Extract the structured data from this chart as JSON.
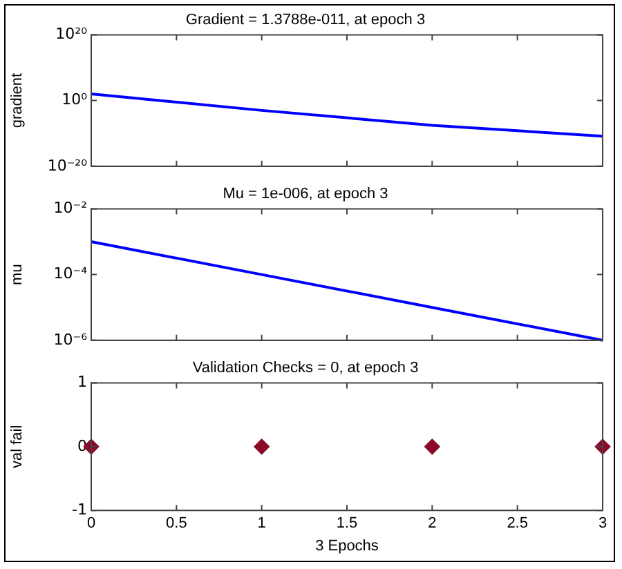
{
  "chart_data": [
    {
      "type": "line",
      "title": "Gradient = 1.3788e-011, at epoch 3",
      "ylabel": "gradient",
      "x": [
        0,
        1,
        2,
        3
      ],
      "log": "y",
      "marker": "none",
      "line_style": "solid",
      "legend": false,
      "grid": false,
      "tick_labels": "y",
      "series": [
        {
          "color": "#0000ff",
          "values": [
            100,
            0.001,
            3e-08,
            1.3788e-11
          ]
        }
      ],
      "xlim": [
        0,
        3
      ],
      "xticks": [
        {
          "value": 0,
          "label": null
        },
        {
          "value": 0.5,
          "label": null
        },
        {
          "value": 1,
          "label": null
        },
        {
          "value": 1.5,
          "label": null
        },
        {
          "value": 2,
          "label": null
        },
        {
          "value": 2.5,
          "label": null
        },
        {
          "value": 3,
          "label": null
        }
      ],
      "ylim": [
        1e-20,
        1e+20
      ],
      "yticks": [
        {
          "value": 1e-20,
          "label": "10⁻²⁰"
        },
        {
          "value": 1,
          "label": "10⁰"
        },
        {
          "value": 1e+20,
          "label": "10²⁰"
        }
      ]
    },
    {
      "type": "line",
      "title": "Mu = 1e-006, at epoch 3",
      "ylabel": "mu",
      "x": [
        0,
        1,
        2,
        3
      ],
      "log": "y",
      "marker": "none",
      "line_style": "solid",
      "legend": false,
      "grid": false,
      "tick_labels": "y",
      "series": [
        {
          "color": "#0000ff",
          "values": [
            0.001,
            0.0001,
            1e-05,
            1e-06
          ]
        }
      ],
      "xlim": [
        0,
        3
      ],
      "xticks": [
        {
          "value": 0,
          "label": null
        },
        {
          "value": 0.5,
          "label": null
        },
        {
          "value": 1,
          "label": null
        },
        {
          "value": 1.5,
          "label": null
        },
        {
          "value": 2,
          "label": null
        },
        {
          "value": 2.5,
          "label": null
        },
        {
          "value": 3,
          "label": null
        }
      ],
      "ylim": [
        1e-06,
        0.01
      ],
      "yticks": [
        {
          "value": 1e-06,
          "label": "10⁻⁶"
        },
        {
          "value": 0.0001,
          "label": "10⁻⁴"
        },
        {
          "value": 0.01,
          "label": "10⁻²"
        }
      ]
    },
    {
      "type": "scatter",
      "title": "Validation Checks = 0, at epoch 3",
      "ylabel": "val fail",
      "xlabel": "3 Epochs",
      "x": [
        0,
        1,
        2,
        3
      ],
      "marker": "diamond",
      "legend": false,
      "grid": false,
      "series": [
        {
          "color": "#8b0a2a",
          "values": [
            0,
            0,
            0,
            0
          ]
        }
      ],
      "xlim": [
        0,
        3
      ],
      "xticks": [
        0,
        0.5,
        1,
        1.5,
        2,
        2.5,
        3
      ],
      "ylim": [
        -1,
        1
      ],
      "yticks": [
        -1,
        0,
        1
      ]
    }
  ]
}
